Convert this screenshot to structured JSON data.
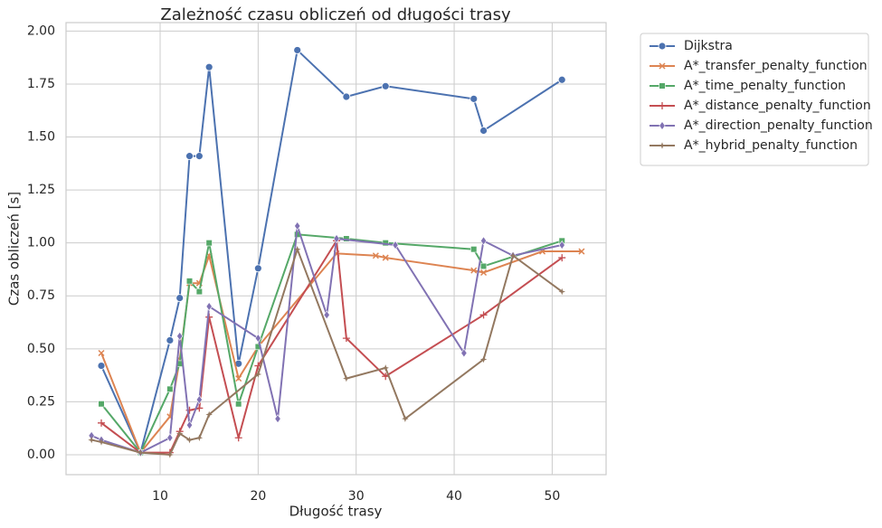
{
  "chart_data": {
    "type": "line",
    "title": "Zależność czasu obliczeń od długości trasy",
    "x_label": "Długość trasy",
    "y_label": "Czas obliczeń [s]",
    "xlim": [
      0.4,
      55.5
    ],
    "ylim": [
      -0.094,
      2.04
    ],
    "xticks": [
      10,
      20,
      30,
      40,
      50
    ],
    "yticks": [
      {
        "value": 0,
        "label": "0.00"
      },
      {
        "value": 0.25,
        "label": "0.25"
      },
      {
        "value": 0.5,
        "label": "0.50"
      },
      {
        "value": 0.75,
        "label": "0.75"
      },
      {
        "value": 1,
        "label": "1.00"
      },
      {
        "value": 1.25,
        "label": "1.25"
      },
      {
        "value": 1.5,
        "label": "1.50"
      },
      {
        "value": 1.75,
        "label": "1.75"
      },
      {
        "value": 2,
        "label": "2.00"
      }
    ],
    "grid": true,
    "legend": "outside-upper-right",
    "series": [
      {
        "name": "Dijkstra",
        "color": "#4c72b0",
        "marker": "circle",
        "x": [
          4,
          8,
          11,
          12,
          13,
          14,
          15,
          18,
          20,
          24,
          29,
          33,
          42,
          43,
          51
        ],
        "values": [
          0.42,
          0.01,
          0.54,
          0.74,
          1.41,
          1.41,
          1.83,
          0.43,
          0.88,
          1.91,
          1.69,
          1.74,
          1.68,
          1.53,
          1.77
        ]
      },
      {
        "name": "A*_transfer_penalty_function",
        "color": "#dd8452",
        "marker": "x",
        "x": [
          4,
          8,
          11,
          12,
          13,
          14,
          15,
          18,
          20,
          28,
          32,
          33,
          42,
          43,
          49,
          53
        ],
        "values": [
          0.48,
          0.01,
          0.18,
          0.45,
          0.81,
          0.81,
          0.94,
          0.36,
          0.51,
          0.95,
          0.94,
          0.93,
          0.87,
          0.86,
          0.96,
          0.96
        ]
      },
      {
        "name": "A*_time_penalty_function",
        "color": "#55a868",
        "marker": "square",
        "x": [
          4,
          8,
          11,
          12,
          13,
          14,
          15,
          18,
          20,
          24,
          29,
          33,
          42,
          43,
          51
        ],
        "values": [
          0.24,
          0.01,
          0.31,
          0.43,
          0.82,
          0.77,
          1.0,
          0.24,
          0.51,
          1.04,
          1.02,
          1.0,
          0.97,
          0.89,
          1.01
        ]
      },
      {
        "name": "A*_distance_penalty_function",
        "color": "#c44e52",
        "marker": "plus",
        "x": [
          4,
          8,
          11,
          12,
          13,
          14,
          15,
          18,
          20,
          28,
          29,
          33,
          43,
          51
        ],
        "values": [
          0.15,
          0.01,
          0.01,
          0.11,
          0.21,
          0.22,
          0.65,
          0.08,
          0.42,
          1.01,
          0.55,
          0.37,
          0.66,
          0.93
        ]
      },
      {
        "name": "A*_direction_penalty_function",
        "color": "#8172b3",
        "marker": "diamond",
        "x": [
          3,
          4,
          8,
          11,
          12,
          13,
          14,
          15,
          20,
          22,
          24,
          27,
          28,
          34,
          41,
          43,
          46,
          51
        ],
        "values": [
          0.09,
          0.07,
          0.01,
          0.08,
          0.56,
          0.14,
          0.26,
          0.7,
          0.55,
          0.17,
          1.08,
          0.66,
          1.02,
          0.99,
          0.48,
          1.01,
          0.94,
          0.99
        ]
      },
      {
        "name": "A*_hybrid_penalty_function",
        "color": "#937860",
        "marker": "star",
        "x": [
          3,
          4,
          8,
          11,
          12,
          13,
          14,
          15,
          20,
          24,
          29,
          33,
          35,
          43,
          46,
          51
        ],
        "values": [
          0.07,
          0.06,
          0.01,
          0.0,
          0.1,
          0.07,
          0.08,
          0.19,
          0.38,
          0.97,
          0.36,
          0.41,
          0.17,
          0.45,
          0.94,
          0.77
        ]
      }
    ]
  }
}
